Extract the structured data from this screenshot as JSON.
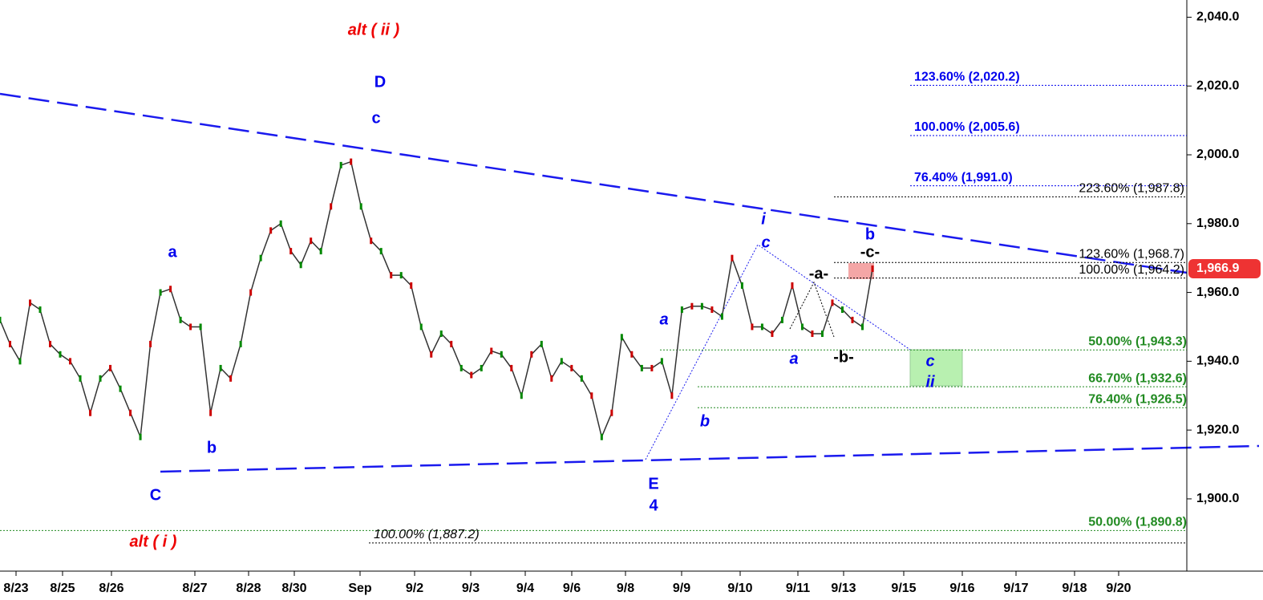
{
  "chart_data": {
    "type": "line",
    "ylim": [
      1879,
      2045
    ],
    "yticks": [
      {
        "value": 1900,
        "label": "1,900.0"
      },
      {
        "value": 1920,
        "label": "1,920.0"
      },
      {
        "value": 1940,
        "label": "1,940.0"
      },
      {
        "value": 1960,
        "label": "1,960.0"
      },
      {
        "value": 1980,
        "label": "1,980.0"
      },
      {
        "value": 2000,
        "label": "2,000.0"
      },
      {
        "value": 2020,
        "label": "2,020.0"
      },
      {
        "value": 2040,
        "label": "2,040.0"
      }
    ],
    "xticks": [
      "8/23",
      "8/25",
      "8/26",
      "8/27",
      "8/28",
      "8/30",
      "Sep",
      "9/2",
      "9/3",
      "9/4",
      "9/6",
      "9/8",
      "9/9",
      "9/10",
      "9/11",
      "9/13",
      "9/15",
      "9/16",
      "9/17",
      "9/18",
      "9/20"
    ],
    "series": [
      {
        "color": "#333333",
        "values": [
          1952,
          1945,
          1940,
          1957,
          1955,
          1945,
          1942,
          1940,
          1935,
          1925,
          1935,
          1938,
          1932,
          1925,
          1918,
          1945,
          1960,
          1961,
          1952,
          1950,
          1950,
          1925,
          1938,
          1935,
          1945,
          1960,
          1970,
          1978,
          1980,
          1972,
          1968,
          1975,
          1972,
          1985,
          1997,
          1998,
          1985,
          1975,
          1972,
          1965,
          1965,
          1962,
          1950,
          1942,
          1948,
          1945,
          1938,
          1936,
          1938,
          1943,
          1942,
          1938,
          1930,
          1942,
          1945,
          1935,
          1940,
          1938,
          1935,
          1930,
          1918,
          1925,
          1947,
          1942,
          1938,
          1938,
          1940,
          1930,
          1955,
          1956,
          1956,
          1955,
          1953,
          1970,
          1962,
          1950,
          1950,
          1948,
          1952,
          1962,
          1950,
          1948,
          1948,
          1957,
          1955,
          1952,
          1950,
          1966.9
        ]
      }
    ],
    "last_price": {
      "value": 1966.9,
      "label": "1,966.9",
      "color": "#ee3333"
    },
    "levels": [
      {
        "label": "123.60% (2,020.2)",
        "value": 2020.2,
        "color": "#0000ee"
      },
      {
        "label": "100.00% (2,005.6)",
        "value": 2005.6,
        "color": "#0000ee"
      },
      {
        "label": "76.40% (1,991.0)",
        "value": 1991.0,
        "color": "#0000ee"
      },
      {
        "label": "223.60% (1,987.8)",
        "value": 1987.8,
        "color": "#000000"
      },
      {
        "label": "123.60% (1,968.7)",
        "value": 1968.7,
        "color": "#000000"
      },
      {
        "label": "100.00% (1,964.2)",
        "value": 1964.2,
        "color": "#000000"
      },
      {
        "label": "50.00% (1,943.3)",
        "value": 1943.3,
        "color": "#228b22"
      },
      {
        "label": "66.70% (1,932.6)",
        "value": 1932.6,
        "color": "#228b22"
      },
      {
        "label": "76.40% (1,926.5)",
        "value": 1926.5,
        "color": "#228b22"
      },
      {
        "label": "50.00% (1,890.8)",
        "value": 1890.8,
        "color": "#228b22"
      },
      {
        "label": "100.00% (1,887.2)",
        "value": 1887.2,
        "color": "#000000"
      }
    ],
    "annotations": [
      {
        "text": "alt ( ii )",
        "color": "#ee0000"
      },
      {
        "text": "D",
        "color": "#0000ee"
      },
      {
        "text": "c",
        "color": "#0000ee"
      },
      {
        "text": "a",
        "color": "#0000ee"
      },
      {
        "text": "b",
        "color": "#0000ee"
      },
      {
        "text": "C",
        "color": "#0000ee"
      },
      {
        "text": "alt ( i )",
        "color": "#ee0000"
      },
      {
        "text": "a",
        "color": "#0000ee"
      },
      {
        "text": "b",
        "color": "#0000ee"
      },
      {
        "text": "E",
        "color": "#0000ee"
      },
      {
        "text": "4",
        "color": "#0000ee"
      },
      {
        "text": "i",
        "color": "#0000ee"
      },
      {
        "text": "c",
        "color": "#0000ee"
      },
      {
        "text": "a",
        "color": "#0000ee"
      },
      {
        "text": "-a-",
        "color": "#000000"
      },
      {
        "text": "-b-",
        "color": "#000000"
      },
      {
        "text": "-c-",
        "color": "#000000"
      },
      {
        "text": "b",
        "color": "#0000ee"
      },
      {
        "text": "c",
        "color": "#0000ee"
      },
      {
        "text": "ii",
        "color": "#0000ee"
      }
    ]
  }
}
